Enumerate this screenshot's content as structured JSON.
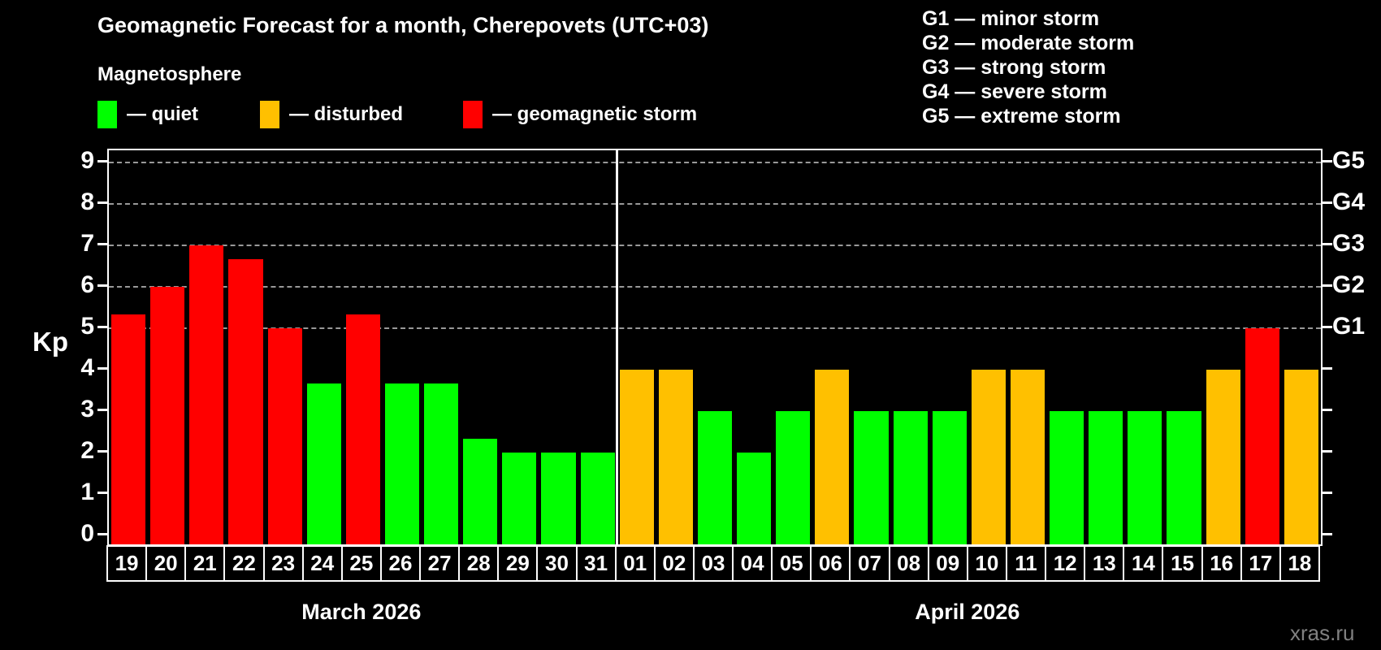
{
  "title": "Geomagnetic Forecast for a month, Cherepovets (UTC+03)",
  "subtitle": "Magnetosphere",
  "axis": {
    "ylabel": "Kp"
  },
  "legend": {
    "quiet": {
      "label": "— quiet",
      "color": "#00ff00"
    },
    "disturbed": {
      "label": "— disturbed",
      "color": "#ffc000"
    },
    "storm": {
      "label": "— geomagnetic storm",
      "color": "#ff0000"
    }
  },
  "storm_scale": {
    "lines": [
      "G1 — minor storm",
      "G2 — moderate storm",
      "G3 — strong storm",
      "G4 — severe storm",
      "G5 — extreme storm"
    ]
  },
  "watermark": "xras.ru",
  "colors": {
    "background": "#000000",
    "quiet": "#00ff00",
    "disturbed": "#ffc000",
    "storm": "#ff0000",
    "gridline": "#999999",
    "frame": "#ffffff",
    "watermark": "#808080"
  },
  "chart_data": {
    "type": "bar",
    "title": "Geomagnetic Forecast for a month, Cherepovets (UTC+03)",
    "ylabel": "Kp",
    "ylim": [
      0,
      9.4
    ],
    "yticks": [
      0,
      1,
      2,
      3,
      4,
      5,
      6,
      7,
      8,
      9
    ],
    "gridlines_at_kp": [
      5,
      6,
      7,
      8,
      9
    ],
    "grid": "horizontal dashed lines at Kp 5-9 only",
    "right_axis": [
      {
        "kp": 5,
        "label": "G1"
      },
      {
        "kp": 6,
        "label": "G2"
      },
      {
        "kp": 7,
        "label": "G3"
      },
      {
        "kp": 8,
        "label": "G4"
      },
      {
        "kp": 9,
        "label": "G5"
      }
    ],
    "months": [
      {
        "label": "March 2026",
        "start_index": 0,
        "days": 13
      },
      {
        "label": "April 2026",
        "start_index": 13,
        "days": 18
      }
    ],
    "bars": [
      {
        "date": "19",
        "kp": 5.33,
        "condition": "storm"
      },
      {
        "date": "20",
        "kp": 6,
        "condition": "storm"
      },
      {
        "date": "21",
        "kp": 7,
        "condition": "storm"
      },
      {
        "date": "22",
        "kp": 6.67,
        "condition": "storm"
      },
      {
        "date": "23",
        "kp": 5,
        "condition": "storm"
      },
      {
        "date": "24",
        "kp": 3.67,
        "condition": "quiet"
      },
      {
        "date": "25",
        "kp": 5.33,
        "condition": "storm"
      },
      {
        "date": "26",
        "kp": 3.67,
        "condition": "quiet"
      },
      {
        "date": "27",
        "kp": 3.67,
        "condition": "quiet"
      },
      {
        "date": "28",
        "kp": 2.33,
        "condition": "quiet"
      },
      {
        "date": "29",
        "kp": 2,
        "condition": "quiet"
      },
      {
        "date": "30",
        "kp": 2,
        "condition": "quiet"
      },
      {
        "date": "31",
        "kp": 2,
        "condition": "quiet"
      },
      {
        "date": "01",
        "kp": 4,
        "condition": "disturbed"
      },
      {
        "date": "02",
        "kp": 4,
        "condition": "disturbed"
      },
      {
        "date": "03",
        "kp": 3,
        "condition": "quiet"
      },
      {
        "date": "04",
        "kp": 2,
        "condition": "quiet"
      },
      {
        "date": "05",
        "kp": 3,
        "condition": "quiet"
      },
      {
        "date": "06",
        "kp": 4,
        "condition": "disturbed"
      },
      {
        "date": "07",
        "kp": 3,
        "condition": "quiet"
      },
      {
        "date": "08",
        "kp": 3,
        "condition": "quiet"
      },
      {
        "date": "09",
        "kp": 3,
        "condition": "quiet"
      },
      {
        "date": "10",
        "kp": 4,
        "condition": "disturbed"
      },
      {
        "date": "11",
        "kp": 4,
        "condition": "disturbed"
      },
      {
        "date": "12",
        "kp": 3,
        "condition": "quiet"
      },
      {
        "date": "13",
        "kp": 3,
        "condition": "quiet"
      },
      {
        "date": "14",
        "kp": 3,
        "condition": "quiet"
      },
      {
        "date": "15",
        "kp": 3,
        "condition": "quiet"
      },
      {
        "date": "16",
        "kp": 4,
        "condition": "disturbed"
      },
      {
        "date": "17",
        "kp": 5,
        "condition": "storm"
      },
      {
        "date": "18",
        "kp": 4,
        "condition": "disturbed"
      }
    ]
  }
}
